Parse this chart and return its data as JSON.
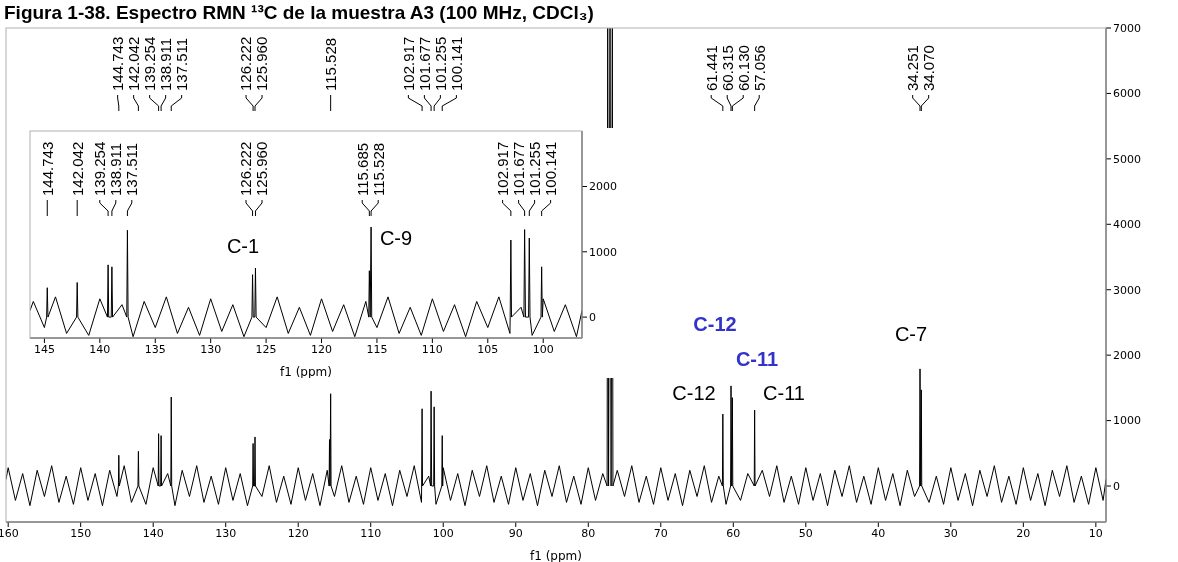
{
  "chart_data": [
    {
      "type": "line",
      "title": "Figura 1-38. Espectro RMN ¹³C de la muestra A3 (100 MHz, CDCl₃)",
      "xlabel": "f1 (ppm)",
      "xlim": [
        160.3,
        8.6
      ],
      "xticks": [
        160,
        150,
        140,
        130,
        120,
        110,
        100,
        90,
        80,
        70,
        60,
        50,
        40,
        30,
        20,
        10
      ],
      "ylim": [
        -550,
        7000
      ],
      "yticks": [
        0,
        1000,
        2000,
        3000,
        4000,
        5000,
        6000,
        7000
      ],
      "series": [
        {
          "color": "#000000",
          "x": [
            160.3,
            160,
            159,
            158,
            157,
            156,
            155,
            154,
            153,
            152,
            151,
            150,
            149,
            148,
            147,
            146,
            145,
            144.8,
            144.743,
            144.68,
            144,
            143,
            142.1,
            142.042,
            141.98,
            141,
            140,
            139.31,
            139.254,
            139.2,
            138.97,
            138.911,
            138.85,
            138,
            137.57,
            137.511,
            137.45,
            137,
            136,
            135,
            134,
            133,
            132,
            131,
            130,
            129,
            128,
            127,
            126.28,
            126.222,
            126.16,
            126.02,
            125.96,
            125.9,
            125,
            124,
            123,
            122,
            121,
            120,
            119,
            118,
            117,
            116,
            115.74,
            115.685,
            115.61,
            115.528,
            115.47,
            115,
            114,
            113,
            112,
            111,
            110,
            109,
            108,
            107,
            106,
            105,
            104,
            103,
            102.98,
            102.917,
            102.86,
            102,
            101.74,
            101.677,
            101.6,
            101.32,
            101.255,
            101.19,
            101,
            100.2,
            100.141,
            100.08,
            100,
            99,
            98,
            97,
            96,
            95,
            94,
            93,
            92,
            91,
            90,
            89,
            88,
            87,
            86,
            85,
            84,
            83,
            82,
            81,
            80,
            79,
            78,
            77.4,
            77.32,
            77.2,
            77,
            76.85,
            76.68,
            76.6,
            76,
            75,
            74,
            73,
            72,
            71,
            70,
            69,
            68,
            67,
            66,
            65,
            64,
            63,
            62,
            61.5,
            61.441,
            61.38,
            61,
            60.37,
            60.315,
            60.22,
            60.13,
            60.07,
            59,
            58,
            57.11,
            57.056,
            57,
            56,
            55,
            54,
            53,
            52,
            51,
            50,
            49,
            48,
            47,
            46,
            45,
            44,
            43,
            42,
            41,
            40,
            39,
            38,
            37,
            36,
            35,
            34.31,
            34.251,
            34.16,
            34.07,
            34.01,
            33,
            32,
            31,
            30,
            29,
            28,
            27,
            26,
            25,
            24,
            23,
            22,
            21,
            20,
            19,
            18,
            17,
            16,
            15,
            14,
            13,
            12,
            11,
            10,
            9,
            8.6
          ],
          "values": [
            100,
            280,
            -220,
            190,
            -300,
            240,
            -160,
            310,
            -250,
            150,
            -280,
            280,
            -220,
            190,
            -300,
            240,
            -160,
            0,
            470,
            0,
            310,
            -250,
            0,
            530,
            0,
            -280,
            280,
            0,
            800,
            0,
            0,
            770,
            0,
            190,
            0,
            1360,
            0,
            -300,
            240,
            -160,
            310,
            -250,
            150,
            -280,
            280,
            -220,
            190,
            -300,
            0,
            650,
            0,
            0,
            750,
            0,
            -160,
            310,
            -250,
            150,
            -280,
            280,
            -220,
            190,
            -300,
            240,
            0,
            710,
            0,
            1410,
            0,
            -160,
            310,
            -250,
            150,
            -280,
            280,
            -220,
            190,
            -300,
            240,
            -160,
            310,
            -250,
            0,
            1180,
            0,
            150,
            0,
            1450,
            0,
            0,
            1210,
            0,
            -280,
            0,
            770,
            0,
            280,
            -220,
            190,
            -300,
            240,
            -160,
            310,
            -250,
            150,
            -280,
            280,
            -220,
            190,
            -300,
            240,
            -160,
            310,
            -250,
            150,
            -280,
            280,
            -220,
            190,
            0,
            7000,
            0,
            7000,
            0,
            7000,
            0,
            240,
            -160,
            310,
            -250,
            150,
            -280,
            280,
            -220,
            190,
            -300,
            240,
            -160,
            310,
            -250,
            150,
            0,
            1100,
            0,
            -280,
            0,
            1530,
            0,
            1350,
            0,
            -220,
            190,
            0,
            1160,
            0,
            240,
            -160,
            310,
            -250,
            150,
            -280,
            280,
            -220,
            190,
            -300,
            240,
            -160,
            310,
            -250,
            150,
            -280,
            280,
            -220,
            190,
            -300,
            240,
            -160,
            0,
            1790,
            0,
            1470,
            0,
            -250,
            150,
            -280,
            280,
            -220,
            190,
            -300,
            240,
            -160,
            310,
            -250,
            150,
            -280,
            280,
            -220,
            190,
            -300,
            240,
            -160,
            310,
            -250,
            150,
            -280,
            280,
            -220,
            100
          ]
        }
      ],
      "annotations": [
        {
          "text": "144.743",
          "x": 144.743
        },
        {
          "text": "142.042",
          "x": 142.042
        },
        {
          "text": "139.254",
          "x": 139.254
        },
        {
          "text": "138.911",
          "x": 138.911
        },
        {
          "text": "137.511",
          "x": 137.511
        },
        {
          "text": "126.222",
          "x": 126.222
        },
        {
          "text": "125.960",
          "x": 125.96
        },
        {
          "text": "115.528",
          "x": 115.528
        },
        {
          "text": "102.917",
          "x": 102.917
        },
        {
          "text": "101.677",
          "x": 101.677
        },
        {
          "text": "101.255",
          "x": 101.255
        },
        {
          "text": "100.141",
          "x": 100.141
        },
        {
          "text": "61.441",
          "x": 61.441
        },
        {
          "text": "60.315",
          "x": 60.315
        },
        {
          "text": "60.130",
          "x": 60.13
        },
        {
          "text": "57.056",
          "x": 57.056
        },
        {
          "text": "34.251",
          "x": 34.251
        },
        {
          "text": "34.070",
          "x": 34.07
        },
        "C-12",
        "C-11",
        "C-12",
        "C-11",
        "C-7"
      ]
    },
    {
      "type": "line",
      "xlabel": "f1 (ppm)",
      "xlim": [
        146.3,
        96.5
      ],
      "xticks": [
        145,
        140,
        135,
        130,
        125,
        120,
        115,
        110,
        105,
        100
      ],
      "ylim": [
        -320,
        2850
      ],
      "yticks": [
        0,
        1000,
        2000
      ],
      "series": [
        {
          "color": "#000000",
          "x": [
            146.3,
            146,
            145,
            144.8,
            144.743,
            144.68,
            144,
            143,
            142.1,
            142.042,
            141.98,
            141,
            140,
            139.31,
            139.254,
            139.2,
            138.97,
            138.911,
            138.85,
            138,
            137.57,
            137.511,
            137.45,
            137,
            136,
            135,
            134,
            133,
            132,
            131,
            130,
            129,
            128,
            127,
            126.28,
            126.222,
            126.16,
            126.02,
            125.96,
            125.9,
            125,
            124,
            123,
            122,
            121,
            120,
            119,
            118,
            117,
            116,
            115.74,
            115.685,
            115.61,
            115.528,
            115.47,
            115,
            114,
            113,
            112,
            111,
            110,
            109,
            108,
            107,
            106,
            105,
            104,
            103,
            102.98,
            102.917,
            102.86,
            102,
            101.74,
            101.677,
            101.6,
            101.32,
            101.255,
            101.19,
            101,
            100.2,
            100.141,
            100.08,
            100,
            99,
            98,
            97,
            96.5
          ],
          "values": [
            100,
            240,
            -160,
            0,
            450,
            0,
            310,
            -250,
            0,
            530,
            0,
            -280,
            280,
            0,
            800,
            0,
            0,
            770,
            0,
            190,
            0,
            1330,
            0,
            -300,
            240,
            -160,
            310,
            -250,
            150,
            -280,
            280,
            -220,
            190,
            -300,
            0,
            650,
            0,
            0,
            750,
            0,
            -160,
            310,
            -250,
            150,
            -280,
            280,
            -220,
            190,
            -300,
            240,
            0,
            710,
            0,
            1380,
            0,
            -160,
            310,
            -250,
            150,
            -280,
            280,
            -220,
            190,
            -300,
            240,
            -160,
            310,
            -250,
            0,
            1180,
            0,
            150,
            0,
            1340,
            0,
            0,
            1210,
            0,
            -280,
            0,
            770,
            0,
            280,
            -220,
            190,
            -300,
            100
          ]
        }
      ],
      "annotations": [
        {
          "text": "144.743",
          "x": 144.743
        },
        {
          "text": "142.042",
          "x": 142.042
        },
        {
          "text": "139.254",
          "x": 139.254
        },
        {
          "text": "138.911",
          "x": 138.911
        },
        {
          "text": "137.511",
          "x": 137.511
        },
        {
          "text": "126.222",
          "x": 126.222
        },
        {
          "text": "125.960",
          "x": 125.96
        },
        {
          "text": "115.685",
          "x": 115.685
        },
        {
          "text": "115.528",
          "x": 115.528
        },
        {
          "text": "102.917",
          "x": 102.917
        },
        {
          "text": "101.677",
          "x": 101.677
        },
        {
          "text": "101.255",
          "x": 101.255
        },
        {
          "text": "100.141",
          "x": 100.141
        },
        "C-1",
        "C-9"
      ]
    }
  ]
}
